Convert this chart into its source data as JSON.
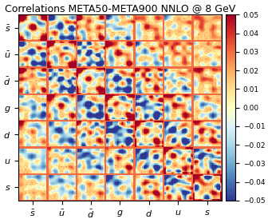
{
  "title": "Correlations META50-META900 NNLO @ 8 GeV",
  "xlabel_labels": [
    "$\\bar{s}$",
    "$\\bar{u}$",
    "$\\bar{d}$",
    "$g$",
    "$d$",
    "$u$",
    "$s$"
  ],
  "ylabel_labels": [
    "$\\bar{s}$",
    "$\\bar{u}$",
    "$\\bar{d}$",
    "$g$",
    "$d$",
    "$u$",
    "$s$"
  ],
  "vmin": -0.05,
  "vmax": 0.05,
  "cmap": "RdYlBu_r",
  "n_blocks": 7,
  "block_size": 30,
  "title_fontsize": 9,
  "tick_fontsize": 8,
  "colorbar_ticks": [
    0.05,
    0.04,
    0.03,
    0.02,
    0.01,
    0.0,
    -0.01,
    -0.02,
    -0.03,
    -0.04,
    -0.05
  ]
}
